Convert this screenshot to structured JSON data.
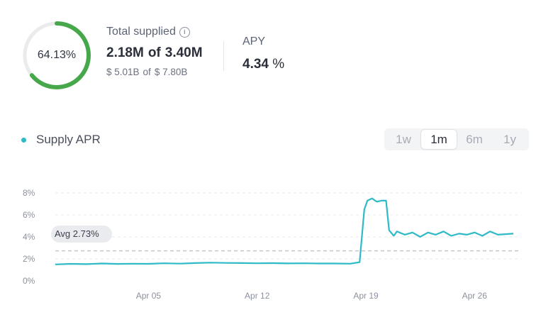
{
  "summary": {
    "utilization_percent": 64.13,
    "utilization_label": "64.13%",
    "total_supplied_title": "Total supplied",
    "supplied_amount": "2.18M",
    "of_label": "of",
    "supply_cap": "3.40M",
    "supplied_usd": "$ 5.01B",
    "supply_cap_usd": "$ 7.80B",
    "apy_title": "APY",
    "apy_value": "4.34",
    "apy_unit": "%"
  },
  "colors": {
    "ring_progress": "#46a84a",
    "ring_track": "#ebebeb",
    "series": "#2ebac6",
    "avg_line": "#c4c7cd"
  },
  "legend": {
    "label": "Supply APR"
  },
  "ranges": [
    {
      "label": "1w",
      "active": false
    },
    {
      "label": "1m",
      "active": true
    },
    {
      "label": "6m",
      "active": false
    },
    {
      "label": "1y",
      "active": false
    }
  ],
  "chart_data": {
    "type": "line",
    "title": "",
    "series": [
      {
        "name": "Supply APR",
        "points": [
          [
            "Mar 30",
            1.5
          ],
          [
            "Mar 31",
            1.55
          ],
          [
            "Apr 01",
            1.52
          ],
          [
            "Apr 02",
            1.58
          ],
          [
            "Apr 03",
            1.54
          ],
          [
            "Apr 04",
            1.56
          ],
          [
            "Apr 05",
            1.55
          ],
          [
            "Apr 06",
            1.6
          ],
          [
            "Apr 07",
            1.57
          ],
          [
            "Apr 08",
            1.62
          ],
          [
            "Apr 09",
            1.66
          ],
          [
            "Apr 10",
            1.63
          ],
          [
            "Apr 11",
            1.62
          ],
          [
            "Apr 12",
            1.6
          ],
          [
            "Apr 13",
            1.61
          ],
          [
            "Apr 14",
            1.59
          ],
          [
            "Apr 15",
            1.6
          ],
          [
            "Apr 16",
            1.58
          ],
          [
            "Apr 17",
            1.58
          ],
          [
            "Apr 18",
            1.56
          ],
          [
            "Apr 18.6",
            1.7
          ],
          [
            "Apr 18.9",
            6.5
          ],
          [
            "Apr 19.1",
            7.3
          ],
          [
            "Apr 19.4",
            7.5
          ],
          [
            "Apr 19.7",
            7.2
          ],
          [
            "Apr 20",
            7.3
          ],
          [
            "Apr 20.3",
            7.3
          ],
          [
            "Apr 20.5",
            4.6
          ],
          [
            "Apr 20.8",
            4.1
          ],
          [
            "Apr 21",
            4.5
          ],
          [
            "Apr 21.5",
            4.2
          ],
          [
            "Apr 22",
            4.4
          ],
          [
            "Apr 22.5",
            4.0
          ],
          [
            "Apr 23",
            4.4
          ],
          [
            "Apr 23.5",
            4.2
          ],
          [
            "Apr 24",
            4.5
          ],
          [
            "Apr 24.5",
            4.1
          ],
          [
            "Apr 25",
            4.3
          ],
          [
            "Apr 25.5",
            4.2
          ],
          [
            "Apr 26",
            4.4
          ],
          [
            "Apr 26.5",
            4.1
          ],
          [
            "Apr 27",
            4.5
          ],
          [
            "Apr 27.5",
            4.2
          ],
          [
            "Apr 28",
            4.25
          ],
          [
            "Apr 28.5",
            4.3
          ]
        ]
      }
    ],
    "x_ticks": [
      "Apr 05",
      "Apr 12",
      "Apr 19",
      "Apr 26"
    ],
    "y_ticks": [
      "0%",
      "2%",
      "4%",
      "6%",
      "8%"
    ],
    "ylim": [
      0,
      8
    ],
    "average": {
      "value": 2.73,
      "label": "Avg 2.73%"
    },
    "grid": true
  }
}
